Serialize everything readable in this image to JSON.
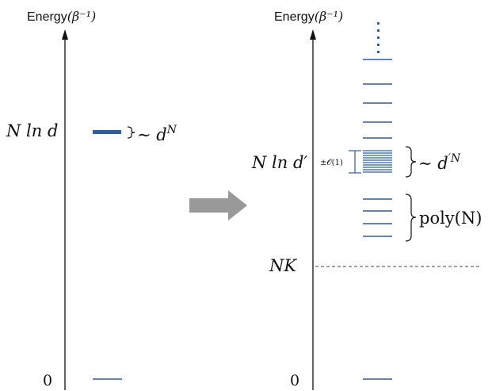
{
  "left_panel": {
    "axis_label": "Energy",
    "axis_unit": "(β⁻¹)",
    "level_label": "N ln d",
    "degeneracy_label": "∼ d",
    "degeneracy_exp": "N",
    "zero_label": "0"
  },
  "right_panel": {
    "axis_label": "Energy",
    "axis_unit": "(β⁻¹)",
    "level_label": "N ln d′",
    "spread_label": "±𝒪(1)",
    "degeneracy_label": "∼ d",
    "degeneracy_exp": "′N",
    "poly_label": "poly(N)",
    "threshold_label": "NK",
    "zero_label": "0"
  },
  "colors": {
    "level": "#2d5fa0",
    "axis": "#111111",
    "arrow": "#999999",
    "dashed": "#444444"
  }
}
